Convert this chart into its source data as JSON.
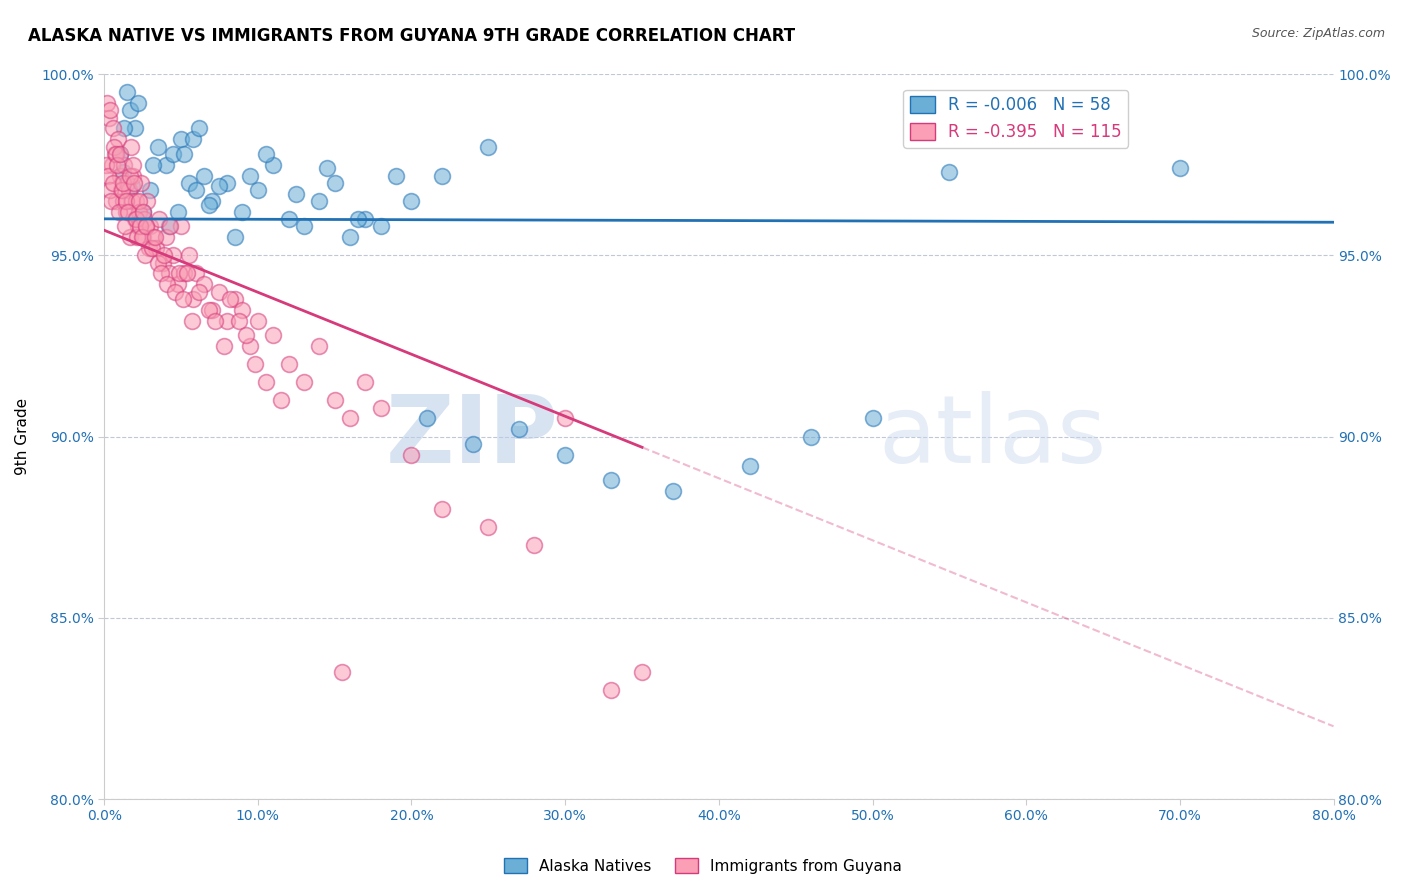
{
  "title": "ALASKA NATIVE VS IMMIGRANTS FROM GUYANA 9TH GRADE CORRELATION CHART",
  "source": "Source: ZipAtlas.com",
  "ylabel": "9th Grade",
  "xmin": 0.0,
  "xmax": 80.0,
  "ymin": 80.0,
  "ymax": 100.0,
  "yticks": [
    80.0,
    85.0,
    90.0,
    95.0,
    100.0
  ],
  "xticks": [
    0.0,
    10.0,
    20.0,
    30.0,
    40.0,
    50.0,
    60.0,
    70.0,
    80.0
  ],
  "blue_R": -0.006,
  "blue_N": 58,
  "pink_R": -0.395,
  "pink_N": 115,
  "blue_color": "#6baed6",
  "pink_color": "#fa9fb5",
  "blue_edge_color": "#2171b5",
  "pink_edge_color": "#d63a7a",
  "blue_line_color": "#2171b5",
  "pink_line_color": "#d63a7a",
  "watermark_zip": "ZIP",
  "watermark_atlas": "atlas",
  "legend_label_blue": "Alaska Natives",
  "legend_label_pink": "Immigrants from Guyana",
  "blue_scatter_x": [
    1.5,
    2.0,
    3.5,
    4.0,
    4.5,
    5.0,
    5.5,
    6.0,
    6.5,
    7.0,
    8.0,
    9.0,
    10.0,
    11.0,
    12.0,
    13.0,
    14.0,
    15.0,
    16.0,
    17.0,
    18.0,
    20.0,
    22.0,
    25.0,
    1.0,
    1.2,
    1.8,
    2.5,
    3.0,
    3.2,
    4.2,
    4.8,
    5.2,
    5.8,
    6.2,
    6.8,
    7.5,
    8.5,
    9.5,
    10.5,
    12.5,
    14.5,
    16.5,
    19.0,
    21.0,
    24.0,
    27.0,
    30.0,
    33.0,
    37.0,
    42.0,
    46.0,
    50.0,
    55.0,
    70.0,
    1.3,
    1.7,
    2.2
  ],
  "blue_scatter_y": [
    99.5,
    98.5,
    98.0,
    97.5,
    97.8,
    98.2,
    97.0,
    96.8,
    97.2,
    96.5,
    97.0,
    96.2,
    96.8,
    97.5,
    96.0,
    95.8,
    96.5,
    97.0,
    95.5,
    96.0,
    95.8,
    96.5,
    97.2,
    98.0,
    97.8,
    97.3,
    96.9,
    96.2,
    96.8,
    97.5,
    95.8,
    96.2,
    97.8,
    98.2,
    98.5,
    96.4,
    96.9,
    95.5,
    97.2,
    97.8,
    96.7,
    97.4,
    96.0,
    97.2,
    90.5,
    89.8,
    90.2,
    89.5,
    88.8,
    88.5,
    89.2,
    90.0,
    90.5,
    97.3,
    97.4,
    98.5,
    99.0,
    99.2
  ],
  "pink_scatter_x": [
    0.2,
    0.3,
    0.4,
    0.5,
    0.6,
    0.7,
    0.8,
    0.9,
    1.0,
    1.1,
    1.2,
    1.3,
    1.4,
    1.5,
    1.6,
    1.7,
    1.8,
    1.9,
    2.0,
    2.1,
    2.2,
    2.3,
    2.4,
    2.5,
    2.6,
    2.7,
    2.8,
    2.9,
    3.0,
    3.2,
    3.4,
    3.6,
    3.8,
    4.0,
    4.2,
    4.5,
    4.8,
    5.0,
    5.2,
    5.5,
    5.8,
    6.0,
    6.5,
    7.0,
    7.5,
    8.0,
    8.5,
    9.0,
    9.5,
    10.0,
    11.0,
    12.0,
    13.0,
    14.0,
    15.0,
    16.0,
    17.0,
    18.0,
    20.0,
    22.0,
    25.0,
    28.0,
    30.0,
    0.15,
    0.25,
    0.35,
    0.45,
    0.55,
    0.65,
    0.75,
    0.85,
    0.95,
    1.05,
    1.15,
    1.25,
    1.35,
    1.45,
    1.55,
    1.65,
    1.75,
    1.85,
    1.95,
    2.05,
    2.15,
    2.25,
    2.35,
    2.45,
    2.55,
    2.65,
    2.75,
    3.1,
    3.3,
    3.5,
    3.7,
    3.9,
    4.1,
    4.3,
    4.6,
    4.9,
    5.1,
    5.4,
    5.7,
    6.2,
    6.8,
    7.2,
    7.8,
    8.2,
    8.8,
    9.2,
    9.8,
    10.5,
    11.5,
    15.5,
    33.0,
    35.0
  ],
  "pink_scatter_y": [
    99.2,
    98.8,
    99.0,
    97.5,
    98.5,
    97.8,
    96.5,
    98.2,
    97.2,
    96.8,
    96.5,
    97.5,
    96.2,
    97.0,
    96.8,
    95.5,
    96.5,
    97.2,
    96.0,
    96.5,
    95.8,
    96.2,
    97.0,
    95.5,
    96.0,
    95.8,
    96.5,
    95.2,
    95.8,
    95.5,
    95.2,
    96.0,
    94.8,
    95.5,
    94.5,
    95.0,
    94.2,
    95.8,
    94.5,
    95.0,
    93.8,
    94.5,
    94.2,
    93.5,
    94.0,
    93.2,
    93.8,
    93.5,
    92.5,
    93.2,
    92.8,
    92.0,
    91.5,
    92.5,
    91.0,
    90.5,
    91.5,
    90.8,
    89.5,
    88.0,
    87.5,
    87.0,
    90.5,
    97.5,
    97.2,
    96.8,
    96.5,
    97.0,
    98.0,
    97.8,
    97.5,
    96.2,
    97.8,
    96.8,
    97.0,
    95.8,
    96.5,
    96.2,
    97.2,
    98.0,
    97.5,
    97.0,
    96.0,
    95.5,
    96.5,
    95.8,
    95.5,
    96.2,
    95.0,
    95.8,
    95.2,
    95.5,
    94.8,
    94.5,
    95.0,
    94.2,
    95.8,
    94.0,
    94.5,
    93.8,
    94.5,
    93.2,
    94.0,
    93.5,
    93.2,
    92.5,
    93.8,
    93.2,
    92.8,
    92.0,
    91.5,
    91.0,
    83.5,
    83.0,
    83.5
  ]
}
